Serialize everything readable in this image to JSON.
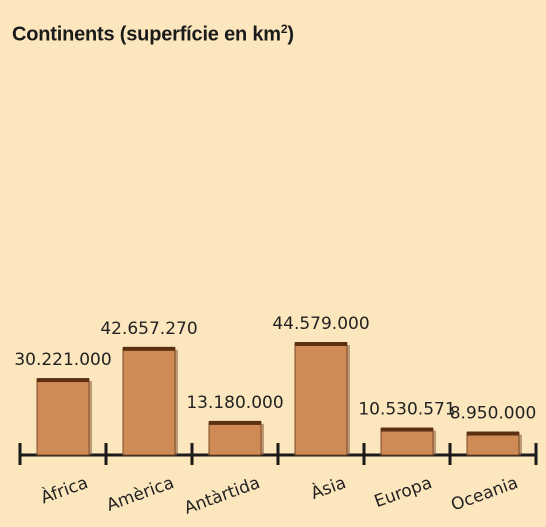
{
  "chart_data": {
    "type": "bar",
    "title": "Continents (superfície en km",
    "title_superscript": "2",
    "categories": [
      "Àfrica",
      "Amèrica",
      "Antàrtida",
      "Àsia",
      "Europa",
      "Oceania"
    ],
    "values": [
      30221000,
      42657270,
      13180000,
      44579000,
      10530571,
      8950000
    ],
    "value_labels": [
      "30.221.000",
      "42.657.270",
      "13.180.000",
      "44.579.000",
      "10.530.571",
      "8.950.000"
    ],
    "xlabel": "",
    "ylabel": "",
    "ylim": [
      0,
      44579000
    ],
    "grid": false,
    "legend": "none"
  },
  "colors": {
    "background": "#fce6bd",
    "bar_fill": "#d08a56",
    "bar_top": "#5a2f12",
    "bar_shadow": "#8a5a3a",
    "axis": "#1a1a1a"
  }
}
